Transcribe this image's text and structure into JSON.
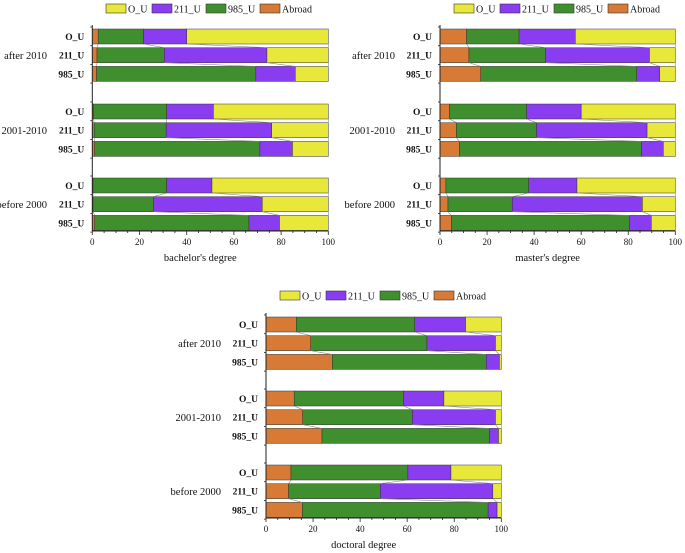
{
  "colors": {
    "O_U": "#e8e83a",
    "211_U": "#8a3cf0",
    "985_U": "#3f8f2e",
    "Abroad": "#d67a35"
  },
  "chart_data": [
    {
      "type": "bar",
      "orientation": "horizontal-stacked",
      "xlabel": "bachelor's degree",
      "xlim": [
        0,
        100
      ],
      "xticks": [
        "0",
        "20",
        "40",
        "60",
        "80",
        "100"
      ],
      "legend": [
        "O_U",
        "211_U",
        "985_U",
        "Abroad"
      ],
      "legend_position": "top",
      "stack_order": [
        "Abroad",
        "985_U",
        "211_U",
        "O_U"
      ],
      "groups": [
        {
          "label": "after 2010",
          "rows": [
            {
              "label": "O_U",
              "values": {
                "Abroad": 2.5,
                "985_U": 19.2,
                "211_U": 18.3,
                "O_U": 60.0
              }
            },
            {
              "label": "211_U",
              "values": {
                "Abroad": 2.0,
                "985_U": 28.5,
                "211_U": 43.5,
                "O_U": 26.0
              }
            },
            {
              "label": "985_U",
              "values": {
                "Abroad": 1.8,
                "985_U": 67.5,
                "211_U": 16.7,
                "O_U": 14.0
              }
            }
          ]
        },
        {
          "label": "2001-2010",
          "rows": [
            {
              "label": "O_U",
              "values": {
                "Abroad": 0.5,
                "985_U": 31.0,
                "211_U": 19.8,
                "O_U": 48.7
              }
            },
            {
              "label": "211_U",
              "values": {
                "Abroad": 0.8,
                "985_U": 30.5,
                "211_U": 44.7,
                "O_U": 24.0
              }
            },
            {
              "label": "985_U",
              "values": {
                "Abroad": 1.0,
                "985_U": 70.0,
                "211_U": 13.8,
                "O_U": 15.2
              }
            }
          ]
        },
        {
          "label": "before 2000",
          "rows": [
            {
              "label": "O_U",
              "values": {
                "Abroad": 0.3,
                "985_U": 31.2,
                "211_U": 19.2,
                "O_U": 49.3
              }
            },
            {
              "label": "211_U",
              "values": {
                "Abroad": 0.3,
                "985_U": 25.7,
                "211_U": 46.0,
                "O_U": 28.0
              }
            },
            {
              "label": "985_U",
              "values": {
                "Abroad": 1.0,
                "985_U": 65.4,
                "211_U": 12.9,
                "O_U": 20.7
              }
            }
          ]
        }
      ]
    },
    {
      "type": "bar",
      "orientation": "horizontal-stacked",
      "xlabel": "master's degree",
      "xlim": [
        0,
        100
      ],
      "xticks": [
        "0",
        "20",
        "40",
        "60",
        "80",
        "100"
      ],
      "legend": [
        "O_U",
        "211_U",
        "985_U",
        "Abroad"
      ],
      "legend_position": "top",
      "stack_order": [
        "Abroad",
        "985_U",
        "211_U",
        "O_U"
      ],
      "groups": [
        {
          "label": "after 2010",
          "rows": [
            {
              "label": "O_U",
              "values": {
                "Abroad": 11.3,
                "985_U": 22.3,
                "211_U": 23.9,
                "O_U": 42.5
              }
            },
            {
              "label": "211_U",
              "values": {
                "Abroad": 12.3,
                "985_U": 32.6,
                "211_U": 44.1,
                "O_U": 11.0
              }
            },
            {
              "label": "985_U",
              "values": {
                "Abroad": 17.3,
                "985_U": 66.3,
                "211_U": 9.8,
                "O_U": 6.6
              }
            }
          ]
        },
        {
          "label": "2001-2010",
          "rows": [
            {
              "label": "O_U",
              "values": {
                "Abroad": 4.0,
                "985_U": 32.8,
                "211_U": 23.2,
                "O_U": 40.0
              }
            },
            {
              "label": "211_U",
              "values": {
                "Abroad": 7.0,
                "985_U": 34.0,
                "211_U": 47.0,
                "O_U": 12.0
              }
            },
            {
              "label": "985_U",
              "values": {
                "Abroad": 8.2,
                "985_U": 77.4,
                "211_U": 9.3,
                "O_U": 5.1
              }
            }
          ]
        },
        {
          "label": "before 2000",
          "rows": [
            {
              "label": "O_U",
              "values": {
                "Abroad": 2.5,
                "985_U": 35.2,
                "211_U": 20.5,
                "O_U": 41.8
              }
            },
            {
              "label": "211_U",
              "values": {
                "Abroad": 3.4,
                "985_U": 27.3,
                "211_U": 55.3,
                "O_U": 14.0
              }
            },
            {
              "label": "985_U",
              "values": {
                "Abroad": 4.8,
                "985_U": 75.8,
                "211_U": 9.2,
                "O_U": 10.2
              }
            }
          ]
        }
      ]
    },
    {
      "type": "bar",
      "orientation": "horizontal-stacked",
      "xlabel": "doctoral degree",
      "xlim": [
        0,
        100
      ],
      "xticks": [
        "0",
        "20",
        "40",
        "60",
        "80",
        "100"
      ],
      "legend": [
        "O_U",
        "211_U",
        "985_U",
        "Abroad"
      ],
      "legend_position": "top",
      "stack_order": [
        "Abroad",
        "985_U",
        "211_U",
        "O_U"
      ],
      "groups": [
        {
          "label": "after 2010",
          "rows": [
            {
              "label": "O_U",
              "values": {
                "Abroad": 12.9,
                "985_U": 50.3,
                "211_U": 21.6,
                "O_U": 15.2
              }
            },
            {
              "label": "211_U",
              "values": {
                "Abroad": 19.0,
                "985_U": 49.4,
                "211_U": 29.1,
                "O_U": 2.5
              }
            },
            {
              "label": "985_U",
              "values": {
                "Abroad": 28.2,
                "985_U": 65.4,
                "211_U": 5.6,
                "O_U": 0.8
              }
            }
          ]
        },
        {
          "label": "2001-2010",
          "rows": [
            {
              "label": "O_U",
              "values": {
                "Abroad": 12.0,
                "985_U": 46.4,
                "211_U": 17.2,
                "O_U": 24.4
              }
            },
            {
              "label": "211_U",
              "values": {
                "Abroad": 15.6,
                "985_U": 46.6,
                "211_U": 35.3,
                "O_U": 2.5
              }
            },
            {
              "label": "985_U",
              "values": {
                "Abroad": 23.8,
                "985_U": 71.2,
                "211_U": 3.8,
                "O_U": 1.2
              }
            }
          ]
        },
        {
          "label": "before 2000",
          "rows": [
            {
              "label": "O_U",
              "values": {
                "Abroad": 10.6,
                "985_U": 49.7,
                "211_U": 18.3,
                "O_U": 21.4
              }
            },
            {
              "label": "211_U",
              "values": {
                "Abroad": 9.6,
                "985_U": 39.0,
                "211_U": 47.8,
                "O_U": 3.6
              }
            },
            {
              "label": "985_U",
              "values": {
                "Abroad": 15.5,
                "985_U": 78.9,
                "211_U": 3.8,
                "O_U": 1.8
              }
            }
          ]
        }
      ]
    }
  ]
}
